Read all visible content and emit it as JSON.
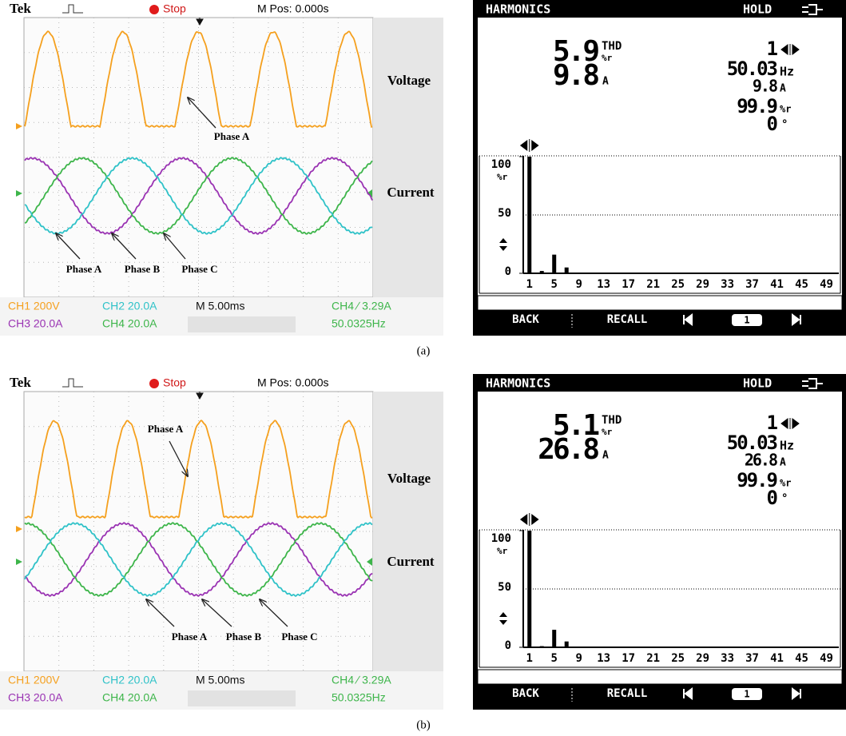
{
  "panels": [
    {
      "caption": "(a)",
      "scope": {
        "brand": "Tek",
        "status": "Stop",
        "position": "M Pos: 0.000s",
        "voltage": "Voltage",
        "current": "Current",
        "annotations": [
          "Phase A",
          "Phase A",
          "Phase B",
          "Phase C"
        ],
        "channels": {
          "ch1": "CH1 200V",
          "ch2": "CH2 20.0A",
          "timebase": "M 5.00ms",
          "trigger": "CH4 ∕ 3.29A",
          "ch3": "CH3 20.0A",
          "ch4": "CH4 20.0A",
          "frequency": "50.0325Hz"
        }
      },
      "analyzer": {
        "title": "HARMONICS",
        "mode": "HOLD",
        "thd": 5.9,
        "thd_label": "THD",
        "thd_unit": "%r",
        "current": 9.8,
        "current_unit": "A",
        "order": 1,
        "frequency": 50.03,
        "frequency_unit": "Hz",
        "order_current": 9.8,
        "order_current_unit": "A",
        "order_percent": 99.9,
        "order_percent_unit": "%r",
        "phase": 0,
        "phase_unit": "°",
        "spectrum": {
          "y_unit": "%r",
          "ylim": [
            0,
            100
          ],
          "yticks": [
            0,
            50,
            100
          ],
          "xlim": [
            0,
            51
          ],
          "xticks": [
            1,
            5,
            9,
            13,
            17,
            21,
            25,
            29,
            33,
            37,
            41,
            45,
            49
          ],
          "orders": [
            1,
            3,
            5,
            7
          ],
          "values": [
            100,
            2,
            16,
            5
          ]
        },
        "menu": {
          "back": "BACK",
          "recall": "RECALL",
          "page": 1
        }
      }
    },
    {
      "caption": "(b)",
      "scope": {
        "brand": "Tek",
        "status": "Stop",
        "position": "M Pos: 0.000s",
        "voltage": "Voltage",
        "current": "Current",
        "annotations": [
          "Phase A",
          "Phase A",
          "Phase B",
          "Phase C"
        ],
        "channels": {
          "ch1": "CH1 200V",
          "ch2": "CH2 20.0A",
          "timebase": "M 5.00ms",
          "trigger": "CH4 ∕ 3.29A",
          "ch3": "CH3 20.0A",
          "ch4": "CH4 20.0A",
          "frequency": "50.0325Hz"
        }
      },
      "analyzer": {
        "title": "HARMONICS",
        "mode": "HOLD",
        "thd": 5.1,
        "thd_label": "THD",
        "thd_unit": "%r",
        "current": 26.8,
        "current_unit": "A",
        "order": 1,
        "frequency": 50.03,
        "frequency_unit": "Hz",
        "order_current": 26.8,
        "order_current_unit": "A",
        "order_percent": 99.9,
        "order_percent_unit": "%r",
        "phase": 0,
        "phase_unit": "°",
        "spectrum": {
          "y_unit": "%r",
          "ylim": [
            0,
            100
          ],
          "yticks": [
            0,
            50,
            100
          ],
          "xlim": [
            0,
            51
          ],
          "xticks": [
            1,
            5,
            9,
            13,
            17,
            21,
            25,
            29,
            33,
            37,
            41,
            45,
            49
          ],
          "orders": [
            1,
            3,
            5,
            7
          ],
          "values": [
            100,
            1,
            15,
            5
          ]
        },
        "menu": {
          "back": "BACK",
          "recall": "RECALL",
          "page": 1
        }
      }
    }
  ]
}
